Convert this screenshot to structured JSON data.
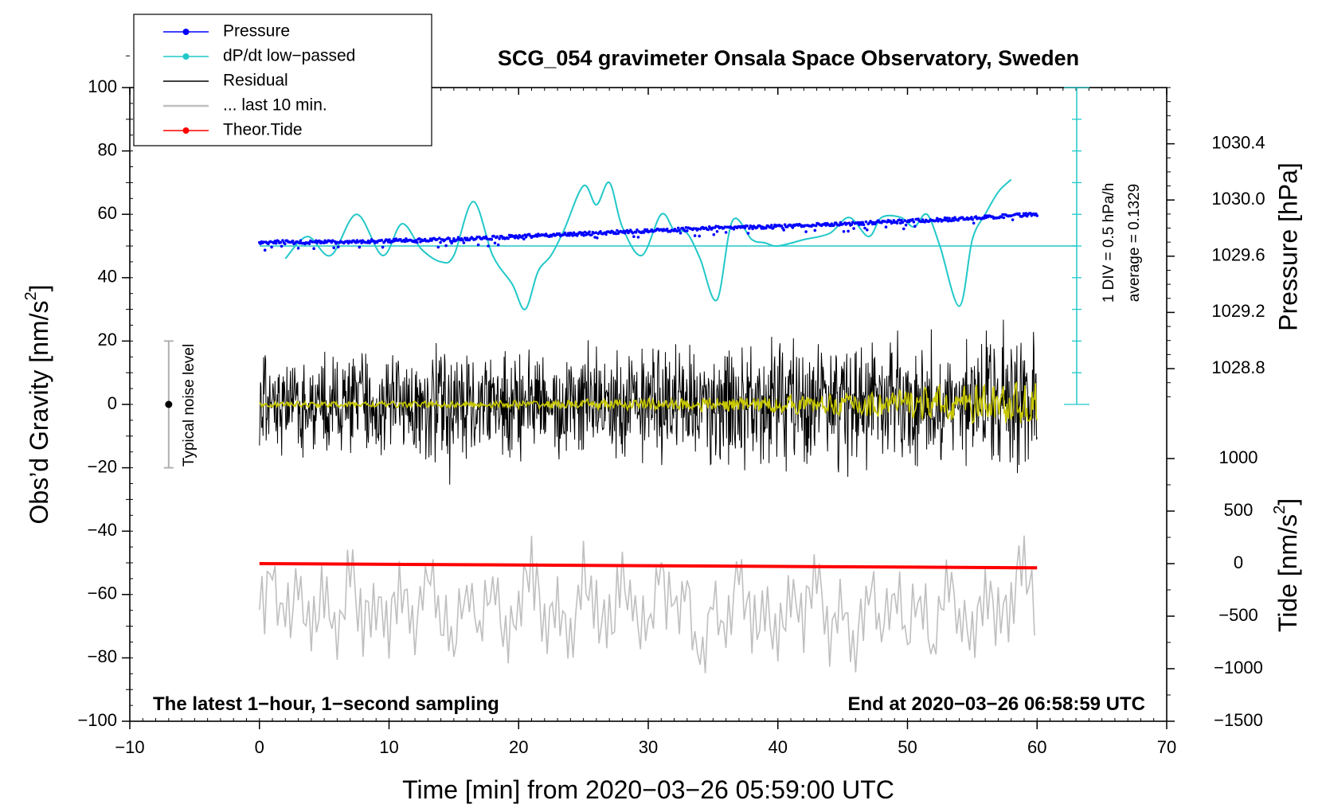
{
  "chart_data": {
    "type": "line",
    "title": "SCG_054 gravimeter Onsala Space Observatory, Sweden",
    "xlabel": "Time [min] from 2020−03−26 05:59:00 UTC",
    "ylabel": "Obs’d Gravity [nm/s",
    "ylabel_sup": "2",
    "ylabel_close": "]",
    "y2label_pressure": "Pressure [hPa]",
    "y2label_tide": "Tide [nm/s",
    "y2label_tide_sup": "2",
    "y2label_tide_close": "]",
    "xlim": [
      -10,
      70
    ],
    "ylim": [
      -100,
      100
    ],
    "x_ticks": [
      "−10",
      "0",
      "10",
      "20",
      "30",
      "40",
      "50",
      "60",
      "70"
    ],
    "y_ticks": [
      "−100",
      "−80",
      "−60",
      "−40",
      "−20",
      "0",
      "20",
      "40",
      "60",
      "80",
      "100"
    ],
    "pressure_axis": {
      "range_hpa": [
        1028.5,
        1030.8
      ],
      "ticks": [
        "1028.8",
        "1029.2",
        "1029.6",
        "1030.0",
        "1030.4"
      ],
      "tick_values": [
        1028.8,
        1029.2,
        1029.6,
        1030.0,
        1030.4
      ]
    },
    "tide_axis": {
      "range": [
        -1500,
        1500
      ],
      "ticks": [
        "−1500",
        "−1000",
        "−500",
        "0",
        "500",
        "1000"
      ],
      "tick_values": [
        -1500,
        -1000,
        -500,
        0,
        500,
        1000
      ]
    },
    "legend": [
      {
        "label": "Pressure",
        "color": "#0000ff",
        "marker": true
      },
      {
        "label": "dP/dt low−passed",
        "color": "#22c8c8",
        "marker": true
      },
      {
        "label": "Residual",
        "color": "#000000",
        "marker": false
      },
      {
        "label": "... last 10 min.",
        "color": "#bfbfbf",
        "marker": false
      },
      {
        "label": "Theor.Tide",
        "color": "#ff0000",
        "marker": true
      }
    ],
    "annotations": {
      "bottom_left": "The latest 1−hour, 1−second sampling",
      "bottom_right": "End at 2020−03−26 06:58:59 UTC",
      "noise_label": "Typical noise level",
      "dpdt_div": "1 DIV = 0.5 hPa/h",
      "dpdt_avg": "average = 0.1329"
    },
    "noise_bar": {
      "x": -7,
      "center": 0,
      "half_range": 20
    },
    "series": [
      {
        "name": "Pressure",
        "unit": "hPa",
        "color": "#0000ff",
        "x": [
          0,
          5,
          10,
          15,
          20,
          25,
          30,
          35,
          40,
          45,
          50,
          55,
          60
        ],
        "y": [
          1029.7,
          1029.7,
          1029.71,
          1029.72,
          1029.74,
          1029.76,
          1029.78,
          1029.8,
          1029.81,
          1029.83,
          1029.85,
          1029.87,
          1029.9
        ]
      },
      {
        "name": "dP/dt low-passed",
        "unit": "nm/s2 (scaled)",
        "color": "#22c8c8",
        "x": [
          2,
          3.7,
          5.5,
          7.5,
          9.5,
          11,
          12.5,
          14,
          15,
          16.5,
          18,
          19.5,
          20.5,
          21.5,
          22.5,
          23.5,
          25,
          26,
          27,
          28,
          29.5,
          31,
          32,
          33,
          34,
          35.3,
          36.5,
          38,
          39,
          40,
          42,
          44,
          45.5,
          47,
          48,
          49.5,
          50.5,
          51.5,
          52.5,
          54,
          55,
          56,
          57,
          58
        ],
        "y": [
          46,
          53,
          47,
          60,
          47,
          57,
          49,
          45,
          47,
          64,
          47,
          38,
          30,
          42,
          47,
          55,
          69,
          63,
          70,
          56,
          47,
          60,
          55,
          54,
          46,
          33,
          58,
          52,
          51,
          50,
          52,
          54,
          59,
          53,
          59,
          59,
          56,
          60,
          50,
          31,
          52,
          60,
          67,
          71
        ]
      },
      {
        "name": "dP/dt average line",
        "color": "#22c8c8",
        "x": [
          0,
          63
        ],
        "y": [
          50,
          50
        ]
      },
      {
        "name": "Residual",
        "unit": "nm/s2",
        "color": "#000000",
        "x_range": [
          0,
          60
        ],
        "y_center": 0,
        "amplitude_start": 18,
        "amplitude_end": 26
      },
      {
        "name": "Residual smoothed",
        "color": "#c8c800",
        "x_range": [
          0,
          60
        ],
        "y_center": 0,
        "amplitude_start": 1,
        "amplitude_end": 6
      },
      {
        "name": "Theor.Tide",
        "unit": "nm/s2",
        "color": "#ff0000",
        "x": [
          0,
          60
        ],
        "y_tide": [
          0,
          -40
        ]
      },
      {
        "name": "... last 10 min.",
        "color": "#bfbfbf",
        "x": [
          0,
          1,
          2,
          3,
          4,
          5,
          6,
          7,
          8,
          9,
          10,
          11,
          12,
          13,
          14,
          15,
          16,
          17,
          18,
          19,
          20,
          21,
          22,
          23,
          24,
          25,
          26,
          27,
          28,
          29,
          30,
          31,
          32,
          33,
          34,
          35,
          36,
          37,
          38,
          39,
          40,
          41,
          42,
          43,
          44,
          45,
          46,
          47,
          48,
          49,
          50,
          51,
          52,
          53,
          54,
          55,
          56,
          57,
          58,
          59,
          60
        ],
        "y": [
          -65,
          -55,
          -70,
          -58,
          -72,
          -60,
          -75,
          -52,
          -68,
          -62,
          -70,
          -55,
          -73,
          -50,
          -66,
          -74,
          -58,
          -69,
          -55,
          -72,
          -64,
          -50,
          -70,
          -60,
          -75,
          -53,
          -67,
          -71,
          -57,
          -66,
          -73,
          -54,
          -69,
          -60,
          -85,
          -62,
          -74,
          -55,
          -70,
          -63,
          -76,
          -58,
          -68,
          -52,
          -73,
          -62,
          -79,
          -55,
          -70,
          -58,
          -72,
          -60,
          -75,
          -54,
          -66,
          -71,
          -59,
          -68,
          -62,
          -48,
          -65
        ]
      }
    ]
  }
}
